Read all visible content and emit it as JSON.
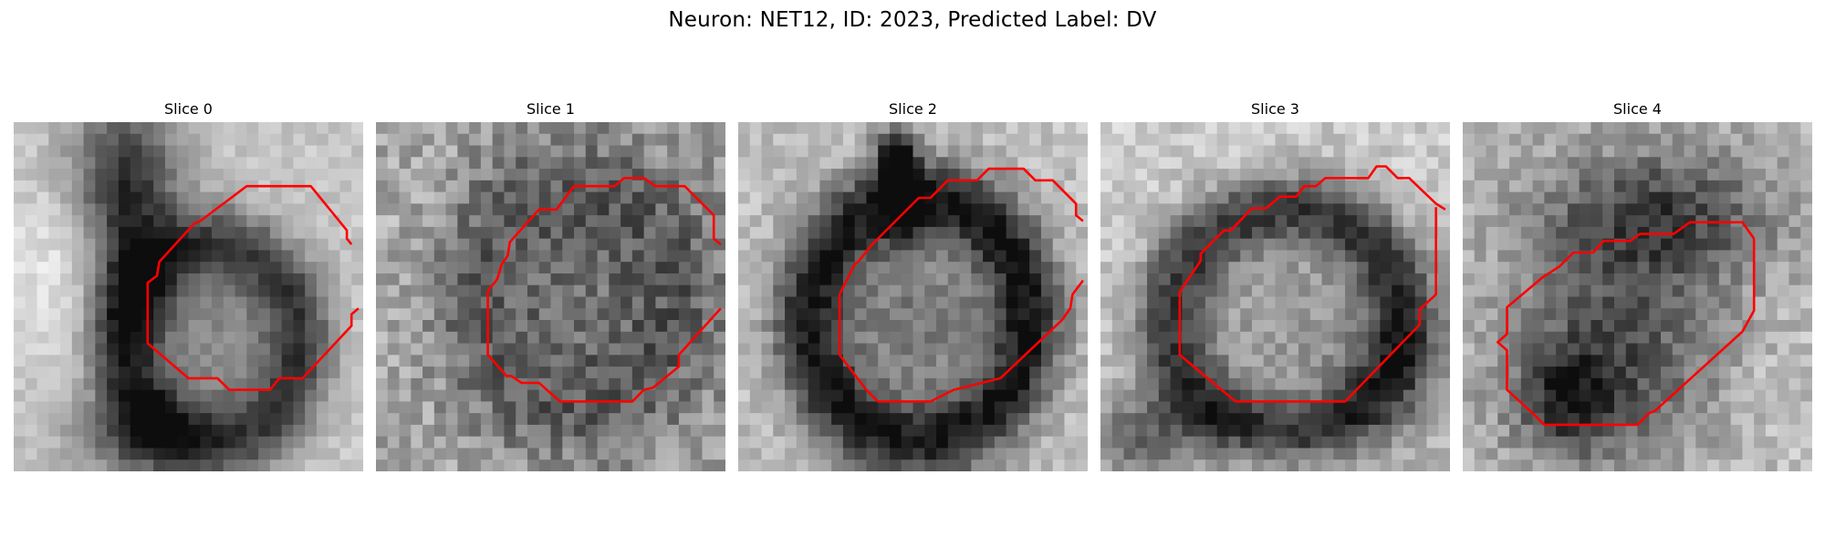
{
  "figure": {
    "title": "Neuron: NET12, ID: 2023, Predicted Label: DV"
  },
  "panels": [
    {
      "title": "Slice 0"
    },
    {
      "title": "Slice 1"
    },
    {
      "title": "Slice 2"
    },
    {
      "title": "Slice 3"
    },
    {
      "title": "Slice 4"
    }
  ],
  "colors": {
    "contour": "#ff0000",
    "background": "#ffffff",
    "image_dark": "#111111",
    "image_light": "#f2f2f2"
  }
}
